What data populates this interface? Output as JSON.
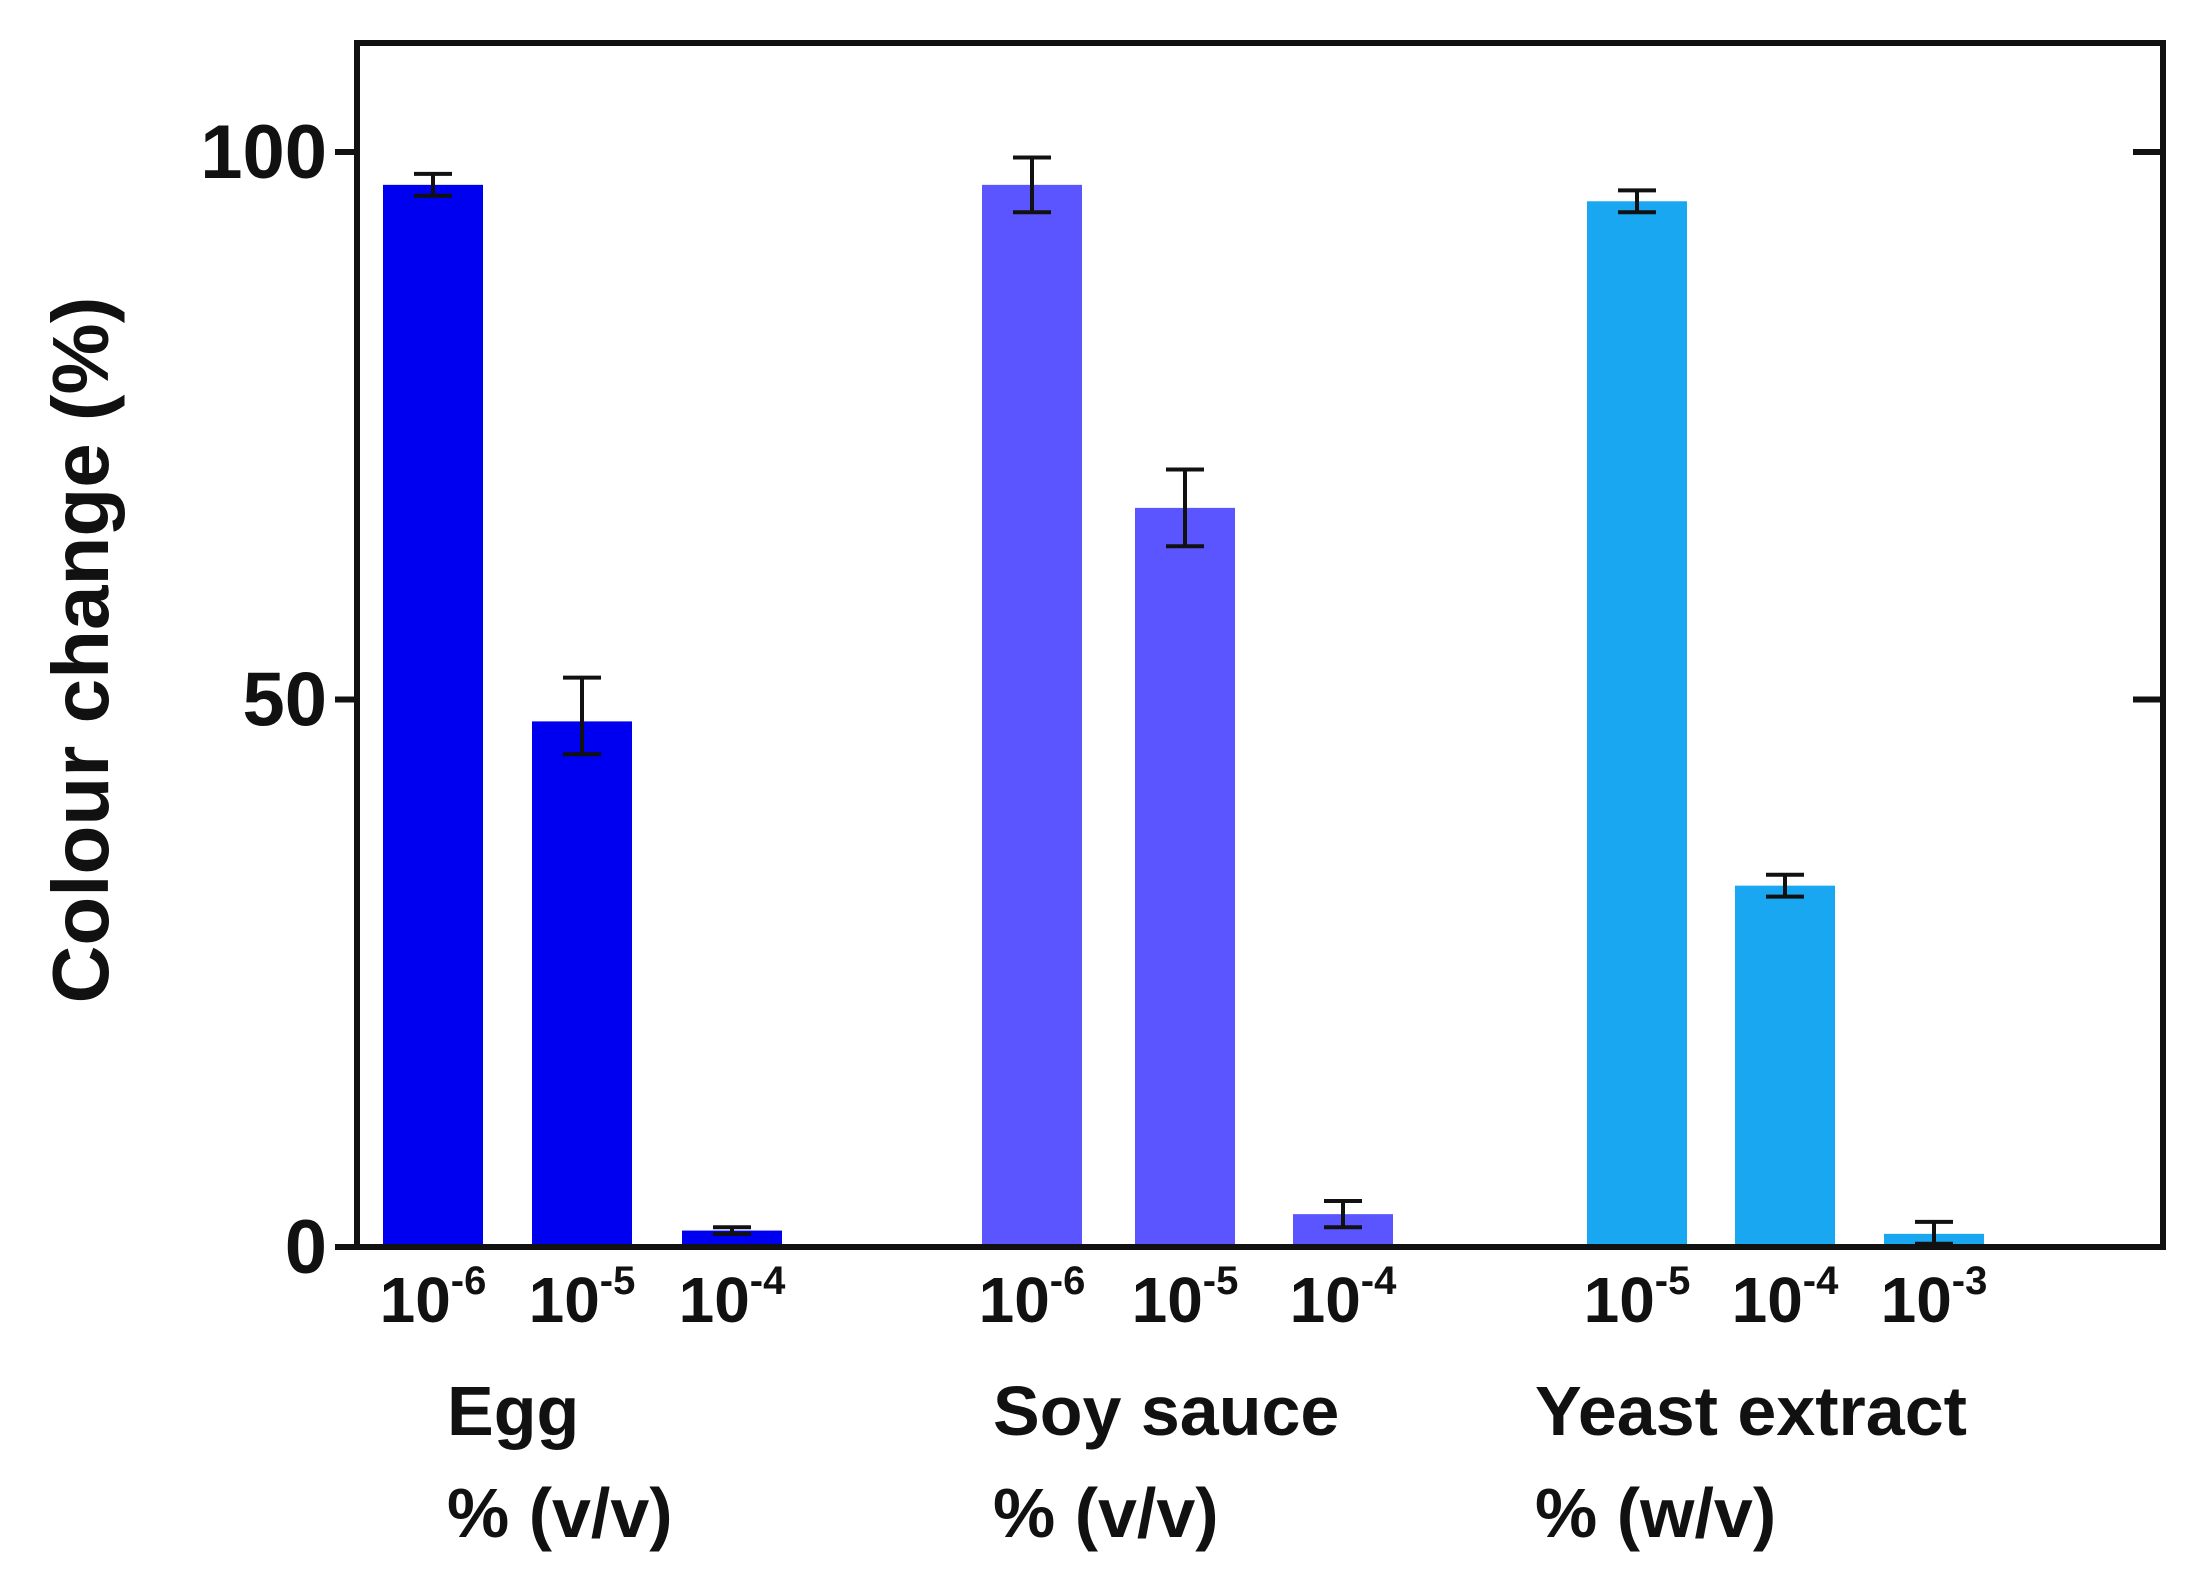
{
  "chart_data": {
    "type": "bar",
    "title": "",
    "ylabel": "Colour change (%)",
    "xlabel": "",
    "ylim": [
      0,
      110
    ],
    "yticks": [
      0,
      50,
      100
    ],
    "grid": false,
    "legend": "none",
    "groups": [
      {
        "name": "Egg",
        "unit": "% (v/v)",
        "color": "#0000f0",
        "bars": [
          {
            "base": "10",
            "exp": "-6",
            "value": 97,
            "err_low": 96,
            "err_high": 98
          },
          {
            "base": "10",
            "exp": "-5",
            "value": 48,
            "err_low": 45,
            "err_high": 52
          },
          {
            "base": "10",
            "exp": "-4",
            "value": 1.5,
            "err_low": 1.2,
            "err_high": 1.8
          }
        ]
      },
      {
        "name": "Soy sauce",
        "unit": "% (v/v)",
        "color": "#5a55ff",
        "bars": [
          {
            "base": "10",
            "exp": "-6",
            "value": 97,
            "err_low": 94.5,
            "err_high": 99.5
          },
          {
            "base": "10",
            "exp": "-5",
            "value": 67.5,
            "err_low": 64,
            "err_high": 71
          },
          {
            "base": "10",
            "exp": "-4",
            "value": 3,
            "err_low": 1.8,
            "err_high": 4.2
          }
        ]
      },
      {
        "name": "Yeast extract",
        "unit": "% (w/v)",
        "color": "#19a7f2",
        "bars": [
          {
            "base": "10",
            "exp": "-5",
            "value": 95.5,
            "err_low": 94.5,
            "err_high": 96.5
          },
          {
            "base": "10",
            "exp": "-4",
            "value": 33,
            "err_low": 32,
            "err_high": 34
          },
          {
            "base": "10",
            "exp": "-3",
            "value": 1.2,
            "err_low": 0.3,
            "err_high": 2.3
          }
        ]
      }
    ]
  }
}
